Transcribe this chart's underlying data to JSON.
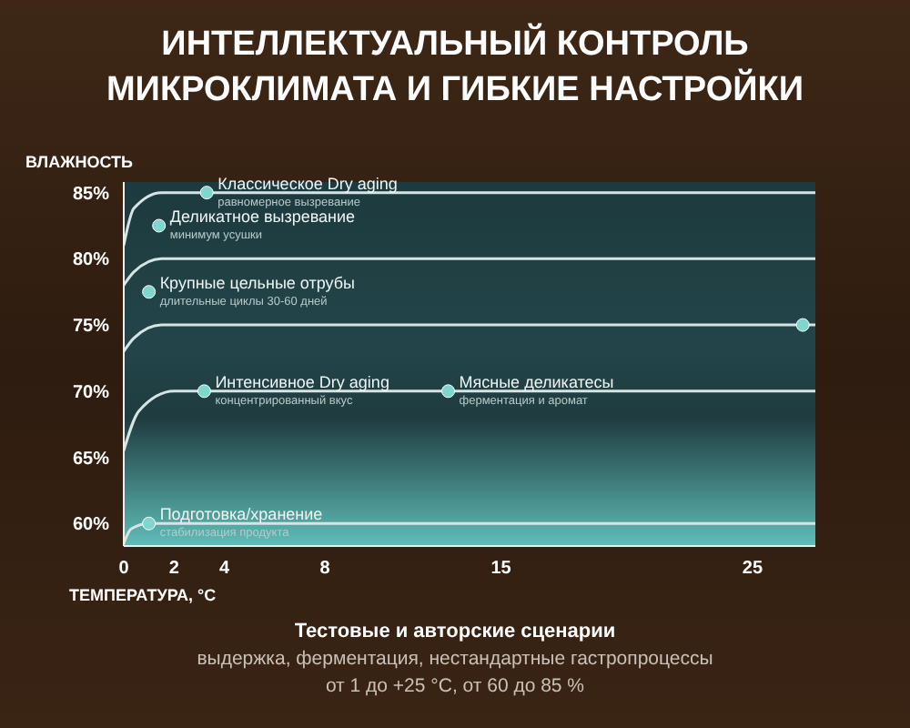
{
  "chart_data": {
    "type": "line",
    "title": "ИНТЕЛЛЕКТУАЛЬНЫЙ КОНТРОЛЬ МИКРОКЛИМАТА И ГИБКИЕ НАСТРОЙКИ",
    "xlabel": "ТЕМПЕРАТУРА, °C",
    "ylabel": "ВЛАЖНОСТЬ",
    "xlim": [
      0,
      27.5
    ],
    "xticks": [
      0,
      2,
      4,
      8,
      15,
      25
    ],
    "ylim": [
      58.3,
      85.8
    ],
    "yticks": [
      {
        "value": 60,
        "label": "60%"
      },
      {
        "value": 65,
        "label": "65%"
      },
      {
        "value": 70,
        "label": "70%"
      },
      {
        "value": 75,
        "label": "75%"
      },
      {
        "value": 80,
        "label": "80%"
      },
      {
        "value": 85,
        "label": "85%"
      }
    ],
    "series": [
      {
        "type": "line",
        "color": "#d6e4e4",
        "x": [
          0,
          0.4,
          1.5,
          27.5
        ],
        "values": [
          81,
          83.8,
          85,
          85
        ]
      },
      {
        "type": "line",
        "color": "#d6e4e4",
        "x": [
          0,
          0.4,
          1.5,
          27.5
        ],
        "values": [
          78,
          79,
          80,
          80
        ]
      },
      {
        "type": "line",
        "color": "#d6e4e4",
        "x": [
          0,
          0.4,
          1.5,
          27.5
        ],
        "values": [
          73,
          74,
          75,
          75
        ]
      },
      {
        "type": "line",
        "color": "#d6e4e4",
        "x": [
          0,
          0.6,
          2,
          27.5
        ],
        "values": [
          65.5,
          68.5,
          70,
          70
        ]
      },
      {
        "type": "line",
        "color": "#d6e4e4",
        "x": [
          0,
          0.3,
          1,
          27.5
        ],
        "values": [
          58.5,
          59.6,
          60,
          60
        ]
      },
      {
        "type": "scatter",
        "color": "#7fd6cc",
        "marker": "circle",
        "x": [
          3.3,
          1.4,
          1,
          3.2,
          12.9,
          27,
          1
        ],
        "values": [
          85,
          82.5,
          77.5,
          70,
          70,
          75,
          60
        ]
      }
    ],
    "annotations": [
      {
        "text": "Классическое Dry aging\nравномерное вызревание",
        "x": 3.3,
        "y": 85
      },
      {
        "text": "Деликатное вызревание\nминимум усушки",
        "x": 1.4,
        "y": 82.5
      },
      {
        "text": "Крупные цельные отрубы\nдлительные циклы 30-60 дней",
        "x": 1,
        "y": 77.5
      },
      {
        "text": "Интенсивное Dry aging\nконцентрированный вкус",
        "x": 3.2,
        "y": 70
      },
      {
        "text": "Мясные деликатесы\nферментация и аромат",
        "x": 12.9,
        "y": 70
      },
      {
        "text": "Подготовка/хранение\nстабилизация продукта",
        "x": 1,
        "y": 60
      },
      "Тестовые и авторские сценарии",
      "выдержка, ферментация, нестандартные гастропроцессы",
      "от 1 до +25 °C, от 60 до 85 %"
    ]
  }
}
